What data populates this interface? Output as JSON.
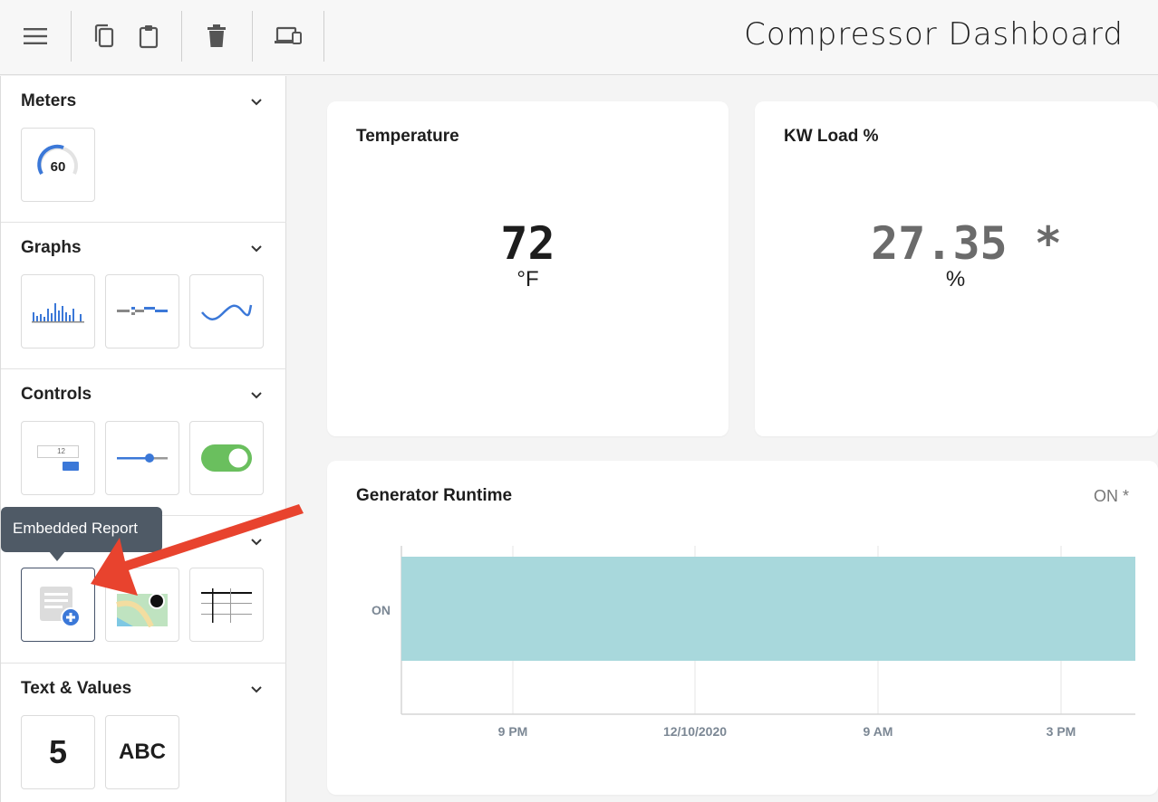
{
  "header": {
    "title": "Compressor Dashboard",
    "buttons": [
      {
        "icon": "menu-icon"
      },
      {
        "icon": "copy-icon"
      },
      {
        "icon": "paste-icon"
      },
      {
        "icon": "delete-icon"
      },
      {
        "icon": "devices-icon"
      }
    ]
  },
  "sidebar": {
    "meters": {
      "title": "Meters",
      "gauge_value": "60"
    },
    "graphs": {
      "title": "Graphs"
    },
    "controls": {
      "title": "Controls",
      "input_value": "12"
    },
    "reports": {
      "tooltip": "Embedded Report"
    },
    "text_values": {
      "title": "Text & Values",
      "number_sample": "5",
      "text_sample": "ABC"
    }
  },
  "cards": {
    "temperature": {
      "title": "Temperature",
      "value": "72",
      "unit": "°F"
    },
    "kw_load": {
      "title": "KW Load %",
      "value": "27.35 *",
      "unit": "%"
    },
    "runtime": {
      "title": "Generator Runtime",
      "status": "ON *"
    }
  },
  "chart_data": {
    "type": "timeline",
    "title": "Generator Runtime",
    "categories": [
      "ON"
    ],
    "x_tick_labels": [
      "9 PM",
      "12/10/2020",
      "9 AM",
      "3 PM"
    ],
    "series": [
      {
        "values": [
          {
            "state": "ON",
            "start": "start of range",
            "end": "end of range"
          }
        ]
      }
    ],
    "color": "#a8d8dc",
    "grid": true
  },
  "colors": {
    "accent_blue": "#3b78d8",
    "toggle_green": "#6abf5e",
    "arrow_red": "#e8432e",
    "tooltip_bg": "#4f5a66"
  }
}
